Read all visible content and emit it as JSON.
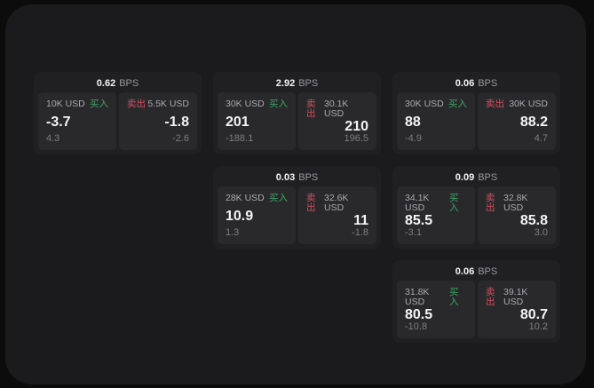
{
  "theme": {
    "outer_bg": "#0c0c0d",
    "panel_bg": "#1b1b1d",
    "card_bg": "#202022",
    "tile_bg": "#29292b",
    "buy_color": "#3fa468",
    "sell_color": "#d25062",
    "text_primary": "#f4f4f5",
    "text_secondary": "#a9a9ad",
    "text_muted": "#7e7e82"
  },
  "labels": {
    "bps": "BPS",
    "buy": "买入",
    "sell": "卖出"
  },
  "cards": [
    {
      "bps": "0.62",
      "buy": {
        "amount": "10K USD",
        "value": "-3.7",
        "sub": "4.3"
      },
      "sell": {
        "amount": "5.5K USD",
        "value": "-1.8",
        "sub": "-2.6"
      }
    },
    {
      "bps": "2.92",
      "buy": {
        "amount": "30K USD",
        "value": "201",
        "sub": "-188.1"
      },
      "sell": {
        "amount": "30.1K USD",
        "value": "210",
        "sub": "196.5"
      }
    },
    {
      "bps": "0.06",
      "buy": {
        "amount": "30K USD",
        "value": "88",
        "sub": "-4.9"
      },
      "sell": {
        "amount": "30K USD",
        "value": "88.2",
        "sub": "4.7"
      }
    },
    {
      "bps": "0.03",
      "buy": {
        "amount": "28K USD",
        "value": "10.9",
        "sub": "1.3"
      },
      "sell": {
        "amount": "32.6K USD",
        "value": "11",
        "sub": "-1.8"
      }
    },
    {
      "bps": "0.09",
      "buy": {
        "amount": "34.1K USD",
        "value": "85.5",
        "sub": "-3.1"
      },
      "sell": {
        "amount": "32.8K USD",
        "value": "85.8",
        "sub": "3.0"
      }
    },
    {
      "bps": "0.06",
      "buy": {
        "amount": "31.8K USD",
        "value": "80.5",
        "sub": "-10.8"
      },
      "sell": {
        "amount": "39.1K USD",
        "value": "80.7",
        "sub": "10.2"
      }
    }
  ]
}
